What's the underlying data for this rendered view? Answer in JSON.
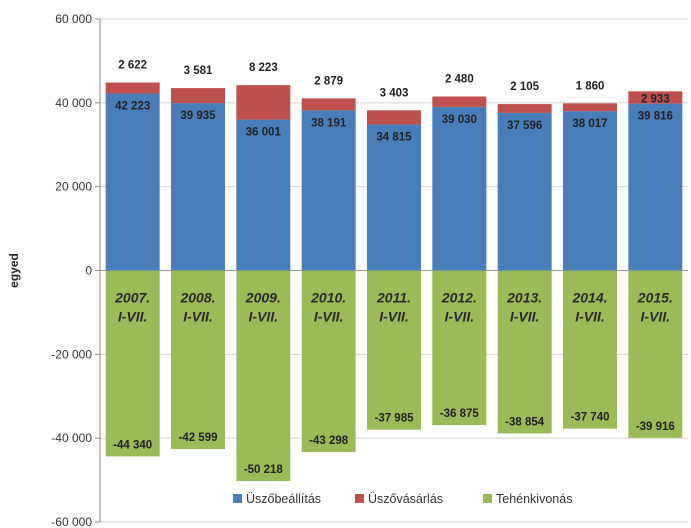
{
  "chart_data": {
    "type": "bar",
    "stacked": true,
    "title": "",
    "xlabel": "",
    "ylabel": "egyed",
    "ylim": [
      -60000,
      60000
    ],
    "yticks": [
      -60000,
      -40000,
      -20000,
      0,
      20000,
      40000,
      60000
    ],
    "ytick_labels": [
      "-60 000",
      "-40 000",
      "-20 000",
      "0",
      "20 000",
      "40 000",
      "60 000"
    ],
    "grid": true,
    "legend": "bottom",
    "categories": [
      [
        "2007.",
        "I-VII."
      ],
      [
        "2008.",
        "I-VII."
      ],
      [
        "2009.",
        "I-VII."
      ],
      [
        "2010.",
        "I-VII."
      ],
      [
        "2011.",
        "I-VII."
      ],
      [
        "2012.",
        "I-VII."
      ],
      [
        "2013.",
        "I-VII."
      ],
      [
        "2014.",
        "I-VII."
      ],
      [
        "2015.",
        "I-VII."
      ]
    ],
    "series": [
      {
        "name": "Üszőbeállítás",
        "color": "#4a7ebb",
        "values": [
          42223,
          39935,
          36001,
          38191,
          34815,
          39030,
          37596,
          38017,
          39816
        ],
        "labels": [
          "42 223",
          "39 935",
          "36 001",
          "38 191",
          "34 815",
          "39 030",
          "37 596",
          "38 017",
          "39 816"
        ]
      },
      {
        "name": "Üszővásárlás",
        "color": "#c0504d",
        "values": [
          2622,
          3581,
          8223,
          2879,
          3403,
          2480,
          2105,
          1860,
          2933
        ],
        "labels": [
          "2 622",
          "3 581",
          "8 223",
          "2 879",
          "3 403",
          "2 480",
          "2 105",
          "1 860",
          "2 933"
        ]
      },
      {
        "name": "Tehénkivonás",
        "color": "#9bbb59",
        "values": [
          -44340,
          -42599,
          -50218,
          -43298,
          -37985,
          -36875,
          -38854,
          -37740,
          -39916
        ],
        "labels": [
          "-44 340",
          "-42 599",
          "-50 218",
          "-43 298",
          "-37 985",
          "-36 875",
          "-38 854",
          "-37 740",
          "-39 916"
        ]
      }
    ]
  }
}
